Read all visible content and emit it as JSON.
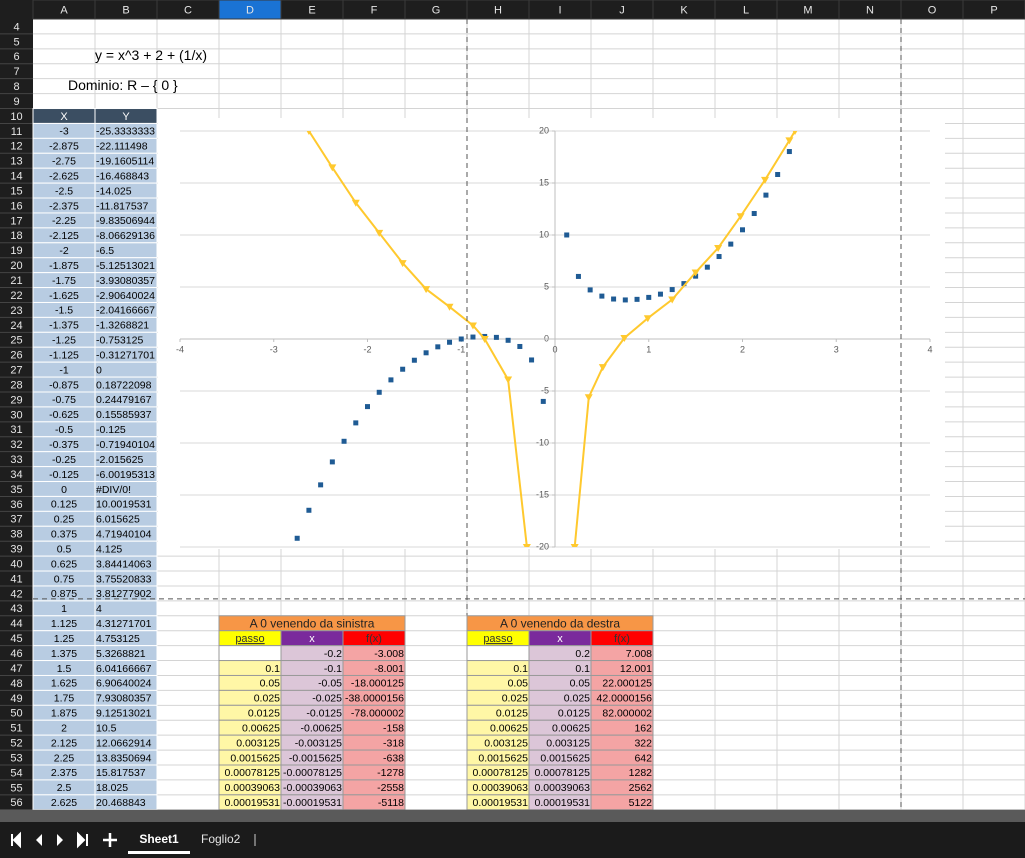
{
  "sheet": {
    "columns": [
      "A",
      "B",
      "C",
      "D",
      "E",
      "F",
      "G",
      "H",
      "I",
      "J",
      "K",
      "L",
      "M",
      "N",
      "O",
      "P"
    ],
    "active_column": 3,
    "rows": [
      4,
      5,
      6,
      7,
      8,
      9,
      10,
      11,
      12,
      13,
      14,
      15,
      16,
      17,
      18,
      19,
      20,
      21,
      22,
      23,
      24,
      25,
      26,
      27,
      28,
      29,
      30,
      31,
      32,
      33,
      34,
      35,
      36,
      37,
      38,
      39,
      40,
      41,
      42,
      43,
      44,
      45,
      46,
      47,
      48,
      49,
      50,
      51,
      52,
      53,
      54,
      55,
      56
    ],
    "formula_text": "y = x^3 + 2 + (1/x)",
    "domain_text": "Dominio: R – { 0 }",
    "xy_table": {
      "header": [
        "X",
        "Y"
      ],
      "rows": [
        [
          "-3",
          "-25.3333333"
        ],
        [
          "-2.875",
          "-22.111498"
        ],
        [
          "-2.75",
          "-19.1605114"
        ],
        [
          "-2.625",
          "-16.468843"
        ],
        [
          "-2.5",
          "-14.025"
        ],
        [
          "-2.375",
          "-11.817537"
        ],
        [
          "-2.25",
          "-9.83506944"
        ],
        [
          "-2.125",
          "-8.06629136"
        ],
        [
          "-2",
          "-6.5"
        ],
        [
          "-1.875",
          "-5.12513021"
        ],
        [
          "-1.75",
          "-3.93080357"
        ],
        [
          "-1.625",
          "-2.90640024"
        ],
        [
          "-1.5",
          "-2.04166667"
        ],
        [
          "-1.375",
          "-1.3268821"
        ],
        [
          "-1.25",
          "-0.753125"
        ],
        [
          "-1.125",
          "-0.31271701"
        ],
        [
          "-1",
          "0"
        ],
        [
          "-0.875",
          "0.18722098"
        ],
        [
          "-0.75",
          "0.24479167"
        ],
        [
          "-0.625",
          "0.15585937"
        ],
        [
          "-0.5",
          "-0.125"
        ],
        [
          "-0.375",
          "-0.71940104"
        ],
        [
          "-0.25",
          "-2.015625"
        ],
        [
          "-0.125",
          "-6.00195313"
        ],
        [
          "0",
          "#DIV/0!"
        ],
        [
          "0.125",
          "10.0019531"
        ],
        [
          "0.25",
          "6.015625"
        ],
        [
          "0.375",
          "4.71940104"
        ],
        [
          "0.5",
          "4.125"
        ],
        [
          "0.625",
          "3.84414063"
        ],
        [
          "0.75",
          "3.75520833"
        ],
        [
          "0.875",
          "3.81277902"
        ],
        [
          "1",
          "4"
        ],
        [
          "1.125",
          "4.31271701"
        ],
        [
          "1.25",
          "4.753125"
        ],
        [
          "1.375",
          "5.3268821"
        ],
        [
          "1.5",
          "6.04166667"
        ],
        [
          "1.625",
          "6.90640024"
        ],
        [
          "1.75",
          "7.93080357"
        ],
        [
          "1.875",
          "9.12513021"
        ],
        [
          "2",
          "10.5"
        ],
        [
          "2.125",
          "12.0662914"
        ],
        [
          "2.25",
          "13.8350694"
        ],
        [
          "2.375",
          "15.817537"
        ],
        [
          "2.5",
          "18.025"
        ],
        [
          "2.625",
          "20.468843"
        ]
      ]
    },
    "left_table": {
      "title": "A 0 venendo da sinistra",
      "header": [
        "passo",
        "x",
        "f(x)"
      ],
      "rows": [
        [
          null,
          "-0.2",
          "-3.008"
        ],
        [
          "0.1",
          "-0.1",
          "-8.001"
        ],
        [
          "0.05",
          "-0.05",
          "-18.000125"
        ],
        [
          "0.025",
          "-0.025",
          "-38.0000156"
        ],
        [
          "0.0125",
          "-0.0125",
          "-78.000002"
        ],
        [
          "0.00625",
          "-0.00625",
          "-158"
        ],
        [
          "0.003125",
          "-0.003125",
          "-318"
        ],
        [
          "0.0015625",
          "-0.0015625",
          "-638"
        ],
        [
          "0.00078125",
          "-0.00078125",
          "-1278"
        ],
        [
          "0.00039063",
          "-0.00039063",
          "-2558"
        ],
        [
          "0.00019531",
          "-0.00019531",
          "-5118"
        ]
      ]
    },
    "right_table": {
      "title": "A 0 venendo da destra",
      "header": [
        "passo",
        "x",
        "f(x)"
      ],
      "rows": [
        [
          null,
          "0.2",
          "7.008"
        ],
        [
          "0.1",
          "0.1",
          "12.001"
        ],
        [
          "0.05",
          "0.05",
          "22.000125"
        ],
        [
          "0.025",
          "0.025",
          "42.0000156"
        ],
        [
          "0.0125",
          "0.0125",
          "82.000002"
        ],
        [
          "0.00625",
          "0.00625",
          "162"
        ],
        [
          "0.003125",
          "0.003125",
          "322"
        ],
        [
          "0.0015625",
          "0.0015625",
          "642"
        ],
        [
          "0.00078125",
          "0.00078125",
          "1282"
        ],
        [
          "0.00039063",
          "0.00039063",
          "2562"
        ],
        [
          "0.00019531",
          "0.00019531",
          "5122"
        ]
      ]
    },
    "tabs": [
      "Sheet1",
      "Foglio2"
    ]
  },
  "chart_data": {
    "type": "scatter",
    "xlim": [
      -4,
      4
    ],
    "ylim": [
      -20,
      20
    ],
    "xticks": [
      -4,
      -3,
      -2,
      -1,
      0,
      1,
      2,
      3,
      4
    ],
    "yticks": [
      -20,
      -15,
      -10,
      -5,
      0,
      5,
      10,
      15,
      20
    ],
    "grid": true,
    "series": [
      {
        "color": "#1f5b94",
        "marker": "square",
        "line": false,
        "x": [
          -2.75,
          -2.625,
          -2.5,
          -2.375,
          -2.25,
          -2.125,
          -2,
          -1.875,
          -1.75,
          -1.625,
          -1.5,
          -1.375,
          -1.25,
          -1.125,
          -1,
          -0.875,
          -0.75,
          -0.625,
          -0.5,
          -0.375,
          -0.25,
          -0.125,
          0.125,
          0.25,
          0.375,
          0.5,
          0.625,
          0.75,
          0.875,
          1,
          1.125,
          1.25,
          1.375,
          1.5,
          1.625,
          1.75,
          1.875,
          2,
          2.125,
          2.25,
          2.375,
          2.5
        ],
        "values": [
          -19.1605114,
          -16.468843,
          -14.025,
          -11.817537,
          -9.83506944,
          -8.06629136,
          -6.5,
          -5.12513021,
          -3.93080357,
          -2.90640024,
          -2.04166667,
          -1.3268821,
          -0.753125,
          -0.31271701,
          0,
          0.18722098,
          0.24479167,
          0.15585937,
          -0.125,
          -0.71940104,
          -2.015625,
          -6.00195313,
          10.0019531,
          6.015625,
          4.71940104,
          4.125,
          3.84414063,
          3.75520833,
          3.81277902,
          4,
          4.31271701,
          4.753125,
          5.3268821,
          6.04166667,
          6.90640024,
          7.93080357,
          9.12513021,
          10.5,
          12.0662914,
          13.8350694,
          15.817537,
          18.025
        ]
      },
      {
        "color": "#ffc92e",
        "marker": "triangle",
        "line": true,
        "x": [
          -2.625,
          -2.375,
          -2.125,
          -1.875,
          -1.625,
          -1.375,
          -1.125,
          -0.875,
          -0.75,
          -0.5,
          -0.3,
          null,
          0.21,
          0.36,
          0.51,
          0.74,
          0.99,
          1.25,
          1.5,
          1.74,
          1.98,
          2.24,
          2.5,
          2.56
        ],
        "values": [
          20,
          16.5,
          13.1,
          10.2,
          7.3,
          4.8,
          3.1,
          1.3,
          0,
          -3.9,
          -20,
          null,
          -20,
          -5.6,
          -2.7,
          0.1,
          2,
          3.8,
          6.4,
          8.75,
          11.8,
          15.3,
          19.1,
          20
        ]
      }
    ]
  }
}
